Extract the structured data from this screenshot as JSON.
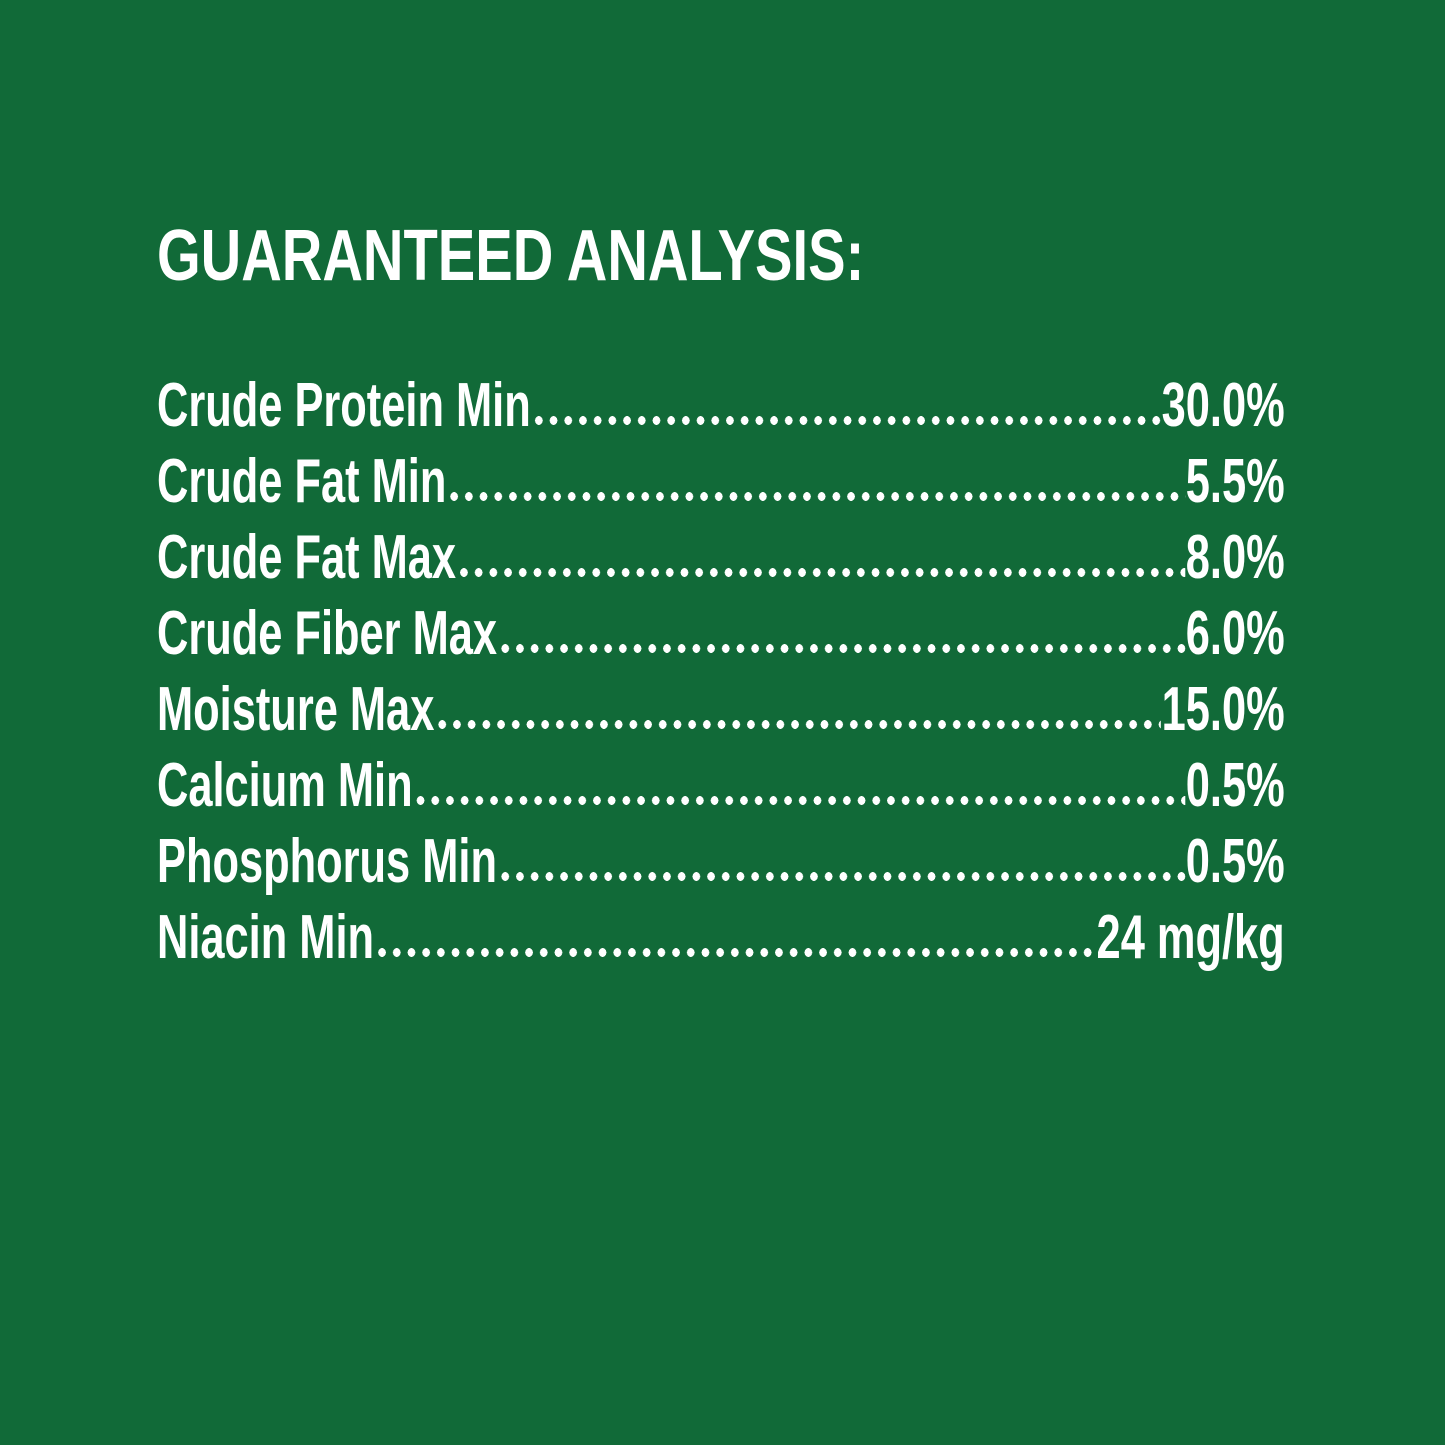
{
  "page": {
    "background_color": "#116A38",
    "text_color": "#FFFFFF"
  },
  "header": {
    "title": "GUARANTEED ANALYSIS:"
  },
  "analysis": {
    "rows": [
      {
        "label": "Crude Protein Min",
        "value": "30.0%"
      },
      {
        "label": "Crude Fat Min",
        "value": "5.5%"
      },
      {
        "label": "Crude Fat Max",
        "value": "8.0%"
      },
      {
        "label": "Crude Fiber Max",
        "value": "6.0%"
      },
      {
        "label": "Moisture Max",
        "value": "15.0%"
      },
      {
        "label": "Calcium Min",
        "value": "0.5%"
      },
      {
        "label": "Phosphorus Min",
        "value": "0.5%"
      },
      {
        "label": "Niacin Min",
        "value": "24 mg/kg"
      }
    ]
  }
}
